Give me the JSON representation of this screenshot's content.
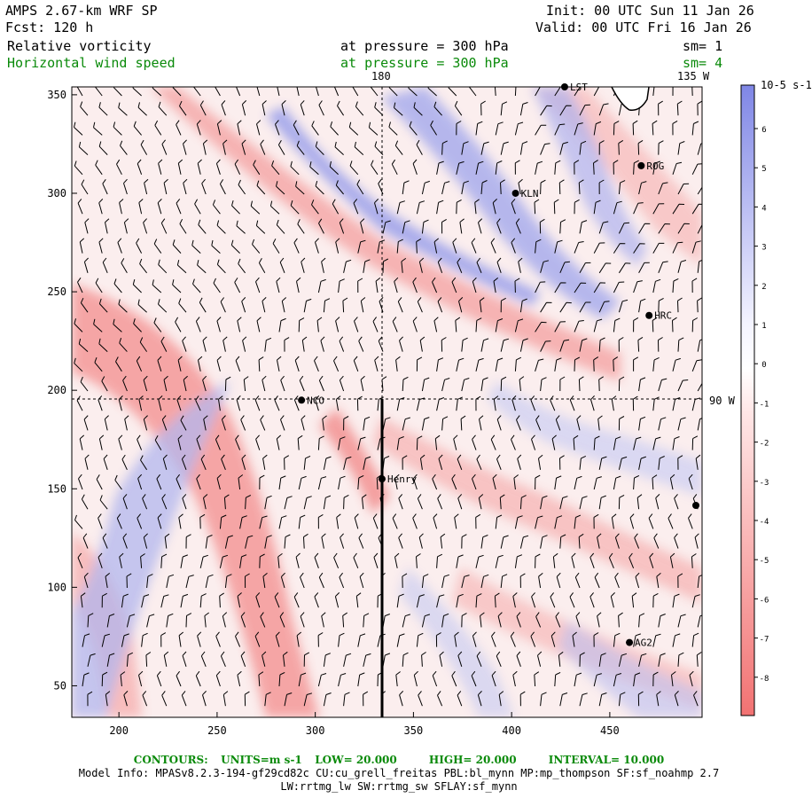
{
  "header": {
    "model": "AMPS 2.67-km WRF SP",
    "fcst": "Fcst: 120 h",
    "init": "Init: 00 UTC Sun 11 Jan 26",
    "valid": "Valid: 00 UTC Fri 16 Jan 26"
  },
  "fields": [
    {
      "name": "Relative vorticity",
      "level": "at pressure =  300 hPa",
      "sm": "sm= 1"
    },
    {
      "name": "Horizontal wind speed",
      "level": "at pressure =  300 hPa",
      "sm": "sm= 4"
    }
  ],
  "map": {
    "lon_180_label": "180",
    "lon_135w_label": "135 W",
    "lon_90w_label": "90 W",
    "x_ticks": [
      200,
      250,
      300,
      350,
      400,
      450
    ],
    "y_ticks": [
      50,
      100,
      150,
      200,
      250,
      300,
      350
    ],
    "x_range": [
      176,
      497
    ],
    "y_range": [
      34,
      354
    ],
    "stations": [
      {
        "label": "NCO",
        "x": 293,
        "y": 195
      },
      {
        "label": "Henry",
        "x": 334,
        "y": 155
      },
      {
        "label": "KLN",
        "x": 402,
        "y": 300
      },
      {
        "label": "ROG",
        "x": 466,
        "y": 314
      },
      {
        "label": "HRC",
        "x": 470,
        "y": 238
      },
      {
        "label": "AG2",
        "x": 460,
        "y": 72
      },
      {
        "label": "LST",
        "x": 427,
        "y": 354
      }
    ]
  },
  "colorbar": {
    "unit": "10-5 s-1",
    "labels": [
      "6",
      "5",
      "4",
      "3",
      "2",
      "1",
      "0",
      "-1",
      "-2",
      "-3",
      "-4",
      "-5",
      "-6",
      "-7",
      "-8"
    ]
  },
  "footer": {
    "contours_label": "CONTOURS:",
    "units": "UNITS=m s-1",
    "low": "LOW= 20.000",
    "high": "HIGH= 20.000",
    "interval": "INTERVAL= 10.000",
    "model_info": "Model Info: MPASv8.2.3-194-gf29cd82c CU:cu_grell_freitas PBL:bl_mynn MP:mp_thompson SF:sf_noahmp 2.7",
    "model_info2": "LW:rrtmg_lw SW:rrtmg_sw SFLAY:sf_mynn"
  },
  "colors": {
    "positive": "#7f86e6",
    "negative": "#f27272",
    "contour_text": "#0a8a0a"
  }
}
